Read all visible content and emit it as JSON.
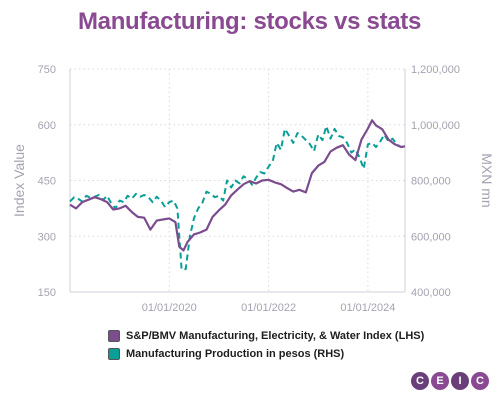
{
  "title": "Manufacturing: stocks vs stats",
  "logo": {
    "letters": [
      "C",
      "E",
      "I",
      "C"
    ],
    "colors": [
      "#6a3e79",
      "#8a4a92",
      "#6a3e79",
      "#8a4a92"
    ]
  },
  "chart_data": {
    "type": "line",
    "title": "Manufacturing: stocks vs stats",
    "ylabel_left": "Index Value",
    "ylabel_right": "MXN mn",
    "ylim_left": [
      150,
      750
    ],
    "ylim_right": [
      400000,
      1200000
    ],
    "yticks_left": [
      "750",
      "600",
      "450",
      "300",
      "150"
    ],
    "yticks_right": [
      "1,200,000",
      "1,000,000",
      "800,000",
      "600,000",
      "400,000"
    ],
    "yticks_left_values": [
      750,
      600,
      450,
      300,
      150
    ],
    "yticks_right_values": [
      1200000,
      1000000,
      800000,
      600000,
      400000
    ],
    "x_range": [
      "2018-01-01",
      "2024-09-30"
    ],
    "xticks": [
      {
        "date": "2020-01-01",
        "label": "01/01/2020"
      },
      {
        "date": "2022-01-01",
        "label": "01/01/2022"
      },
      {
        "date": "2024-01-01",
        "label": "01/01/2024"
      }
    ],
    "grid": true,
    "legend_position": "bottom",
    "series": [
      {
        "name": "S&P/BMV Manufacturing, Electricity, & Water Index (LHS)",
        "axis": "left",
        "color": "#7b4c8e",
        "style": "solid",
        "points": [
          [
            "2018-01-01",
            385
          ],
          [
            "2018-02-15",
            375
          ],
          [
            "2018-04-01",
            392
          ],
          [
            "2018-05-15",
            398
          ],
          [
            "2018-07-01",
            405
          ],
          [
            "2018-08-15",
            400
          ],
          [
            "2018-10-01",
            392
          ],
          [
            "2018-11-15",
            372
          ],
          [
            "2019-01-01",
            375
          ],
          [
            "2019-02-15",
            382
          ],
          [
            "2019-04-01",
            365
          ],
          [
            "2019-05-15",
            352
          ],
          [
            "2019-07-01",
            350
          ],
          [
            "2019-08-15",
            318
          ],
          [
            "2019-10-01",
            342
          ],
          [
            "2019-11-15",
            345
          ],
          [
            "2020-01-01",
            348
          ],
          [
            "2020-02-15",
            338
          ],
          [
            "2020-03-15",
            272
          ],
          [
            "2020-04-15",
            262
          ],
          [
            "2020-05-15",
            285
          ],
          [
            "2020-07-01",
            305
          ],
          [
            "2020-08-15",
            310
          ],
          [
            "2020-10-01",
            318
          ],
          [
            "2020-11-15",
            352
          ],
          [
            "2021-01-01",
            370
          ],
          [
            "2021-02-15",
            385
          ],
          [
            "2021-04-01",
            410
          ],
          [
            "2021-05-15",
            425
          ],
          [
            "2021-07-01",
            440
          ],
          [
            "2021-08-15",
            448
          ],
          [
            "2021-10-01",
            442
          ],
          [
            "2021-11-15",
            450
          ],
          [
            "2022-01-01",
            452
          ],
          [
            "2022-02-15",
            445
          ],
          [
            "2022-04-01",
            440
          ],
          [
            "2022-05-15",
            430
          ],
          [
            "2022-07-01",
            420
          ],
          [
            "2022-08-15",
            425
          ],
          [
            "2022-10-01",
            418
          ],
          [
            "2022-11-15",
            470
          ],
          [
            "2023-01-01",
            490
          ],
          [
            "2023-02-15",
            500
          ],
          [
            "2023-04-01",
            528
          ],
          [
            "2023-05-15",
            538
          ],
          [
            "2023-07-01",
            545
          ],
          [
            "2023-08-15",
            520
          ],
          [
            "2023-10-01",
            505
          ],
          [
            "2023-11-15",
            560
          ],
          [
            "2024-01-01",
            590
          ],
          [
            "2024-02-01",
            612
          ],
          [
            "2024-03-01",
            598
          ],
          [
            "2024-04-15",
            588
          ],
          [
            "2024-06-01",
            560
          ],
          [
            "2024-07-15",
            548
          ],
          [
            "2024-09-01",
            540
          ],
          [
            "2024-09-30",
            542
          ]
        ]
      },
      {
        "name": "Manufacturing Production in pesos (RHS)",
        "axis": "right",
        "color": "#0a9e97",
        "style": "dashed",
        "points": [
          [
            "2018-01-01",
            725000
          ],
          [
            "2018-02-01",
            740000
          ],
          [
            "2018-03-01",
            735000
          ],
          [
            "2018-04-01",
            725000
          ],
          [
            "2018-05-01",
            745000
          ],
          [
            "2018-06-01",
            738000
          ],
          [
            "2018-07-01",
            742000
          ],
          [
            "2018-08-01",
            748000
          ],
          [
            "2018-09-01",
            730000
          ],
          [
            "2018-10-01",
            745000
          ],
          [
            "2018-11-01",
            718000
          ],
          [
            "2018-12-01",
            700000
          ],
          [
            "2019-01-01",
            728000
          ],
          [
            "2019-02-01",
            722000
          ],
          [
            "2019-03-01",
            745000
          ],
          [
            "2019-04-01",
            735000
          ],
          [
            "2019-05-01",
            752000
          ],
          [
            "2019-06-01",
            742000
          ],
          [
            "2019-07-01",
            748000
          ],
          [
            "2019-08-01",
            740000
          ],
          [
            "2019-09-01",
            722000
          ],
          [
            "2019-10-01",
            742000
          ],
          [
            "2019-11-01",
            728000
          ],
          [
            "2019-12-01",
            705000
          ],
          [
            "2020-01-01",
            722000
          ],
          [
            "2020-02-01",
            728000
          ],
          [
            "2020-03-01",
            700000
          ],
          [
            "2020-04-01",
            480000
          ],
          [
            "2020-05-01",
            482000
          ],
          [
            "2020-06-01",
            600000
          ],
          [
            "2020-07-01",
            665000
          ],
          [
            "2020-08-01",
            700000
          ],
          [
            "2020-09-01",
            720000
          ],
          [
            "2020-10-01",
            760000
          ],
          [
            "2020-11-01",
            752000
          ],
          [
            "2020-12-01",
            740000
          ],
          [
            "2021-01-01",
            745000
          ],
          [
            "2021-02-01",
            728000
          ],
          [
            "2021-03-01",
            800000
          ],
          [
            "2021-04-01",
            775000
          ],
          [
            "2021-05-01",
            800000
          ],
          [
            "2021-06-01",
            790000
          ],
          [
            "2021-07-01",
            815000
          ],
          [
            "2021-08-01",
            805000
          ],
          [
            "2021-09-01",
            785000
          ],
          [
            "2021-10-01",
            810000
          ],
          [
            "2021-11-01",
            830000
          ],
          [
            "2021-12-01",
            825000
          ],
          [
            "2022-01-01",
            850000
          ],
          [
            "2022-02-01",
            870000
          ],
          [
            "2022-03-01",
            935000
          ],
          [
            "2022-04-01",
            910000
          ],
          [
            "2022-05-01",
            985000
          ],
          [
            "2022-06-01",
            960000
          ],
          [
            "2022-07-01",
            935000
          ],
          [
            "2022-08-01",
            970000
          ],
          [
            "2022-09-01",
            960000
          ],
          [
            "2022-10-01",
            945000
          ],
          [
            "2022-11-01",
            930000
          ],
          [
            "2022-12-01",
            905000
          ],
          [
            "2023-01-01",
            965000
          ],
          [
            "2023-02-01",
            945000
          ],
          [
            "2023-03-01",
            995000
          ],
          [
            "2023-04-01",
            950000
          ],
          [
            "2023-05-01",
            985000
          ],
          [
            "2023-06-01",
            960000
          ],
          [
            "2023-07-01",
            955000
          ],
          [
            "2023-08-01",
            935000
          ],
          [
            "2023-09-01",
            900000
          ],
          [
            "2023-10-01",
            912000
          ],
          [
            "2023-11-01",
            882000
          ],
          [
            "2023-12-01",
            842000
          ],
          [
            "2024-01-01",
            930000
          ],
          [
            "2024-02-01",
            935000
          ],
          [
            "2024-03-01",
            920000
          ],
          [
            "2024-04-01",
            940000
          ],
          [
            "2024-05-01",
            965000
          ],
          [
            "2024-06-01",
            940000
          ],
          [
            "2024-07-01",
            950000
          ],
          [
            "2024-08-01",
            930000
          ],
          [
            "2024-09-01",
            920000
          ]
        ]
      }
    ]
  }
}
